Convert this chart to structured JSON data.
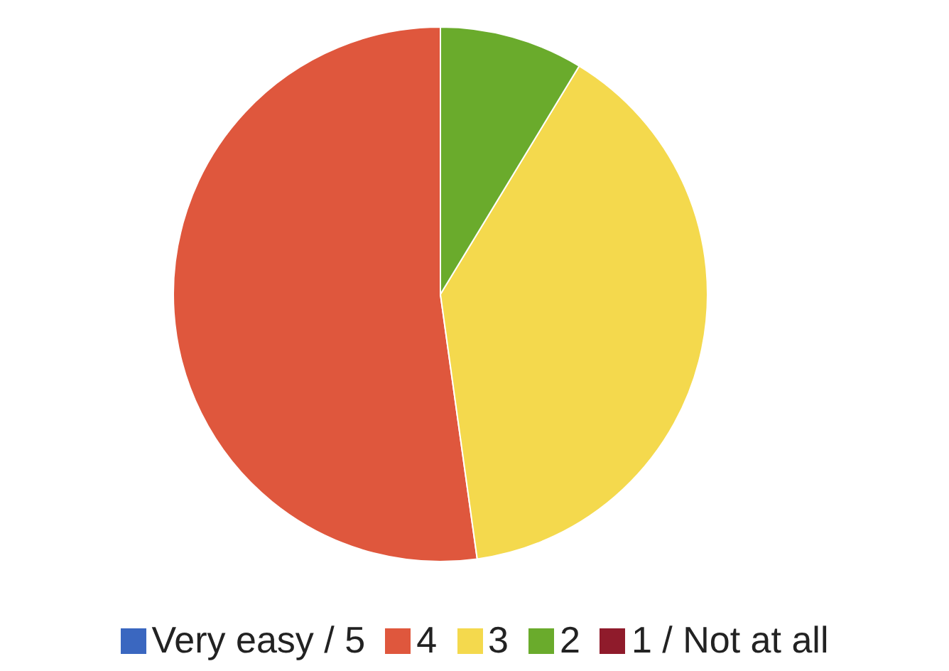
{
  "chart_data": {
    "type": "pie",
    "categories": [
      "Very easy / 5",
      "4",
      "3",
      "2",
      "1 / Not at all"
    ],
    "values": [
      0,
      52.2,
      39.1,
      8.7,
      0
    ],
    "colors": [
      "#3a67c0",
      "#df573d",
      "#f4d94d",
      "#6aab2c",
      "#8f1b2b"
    ],
    "legend": "bottom"
  }
}
